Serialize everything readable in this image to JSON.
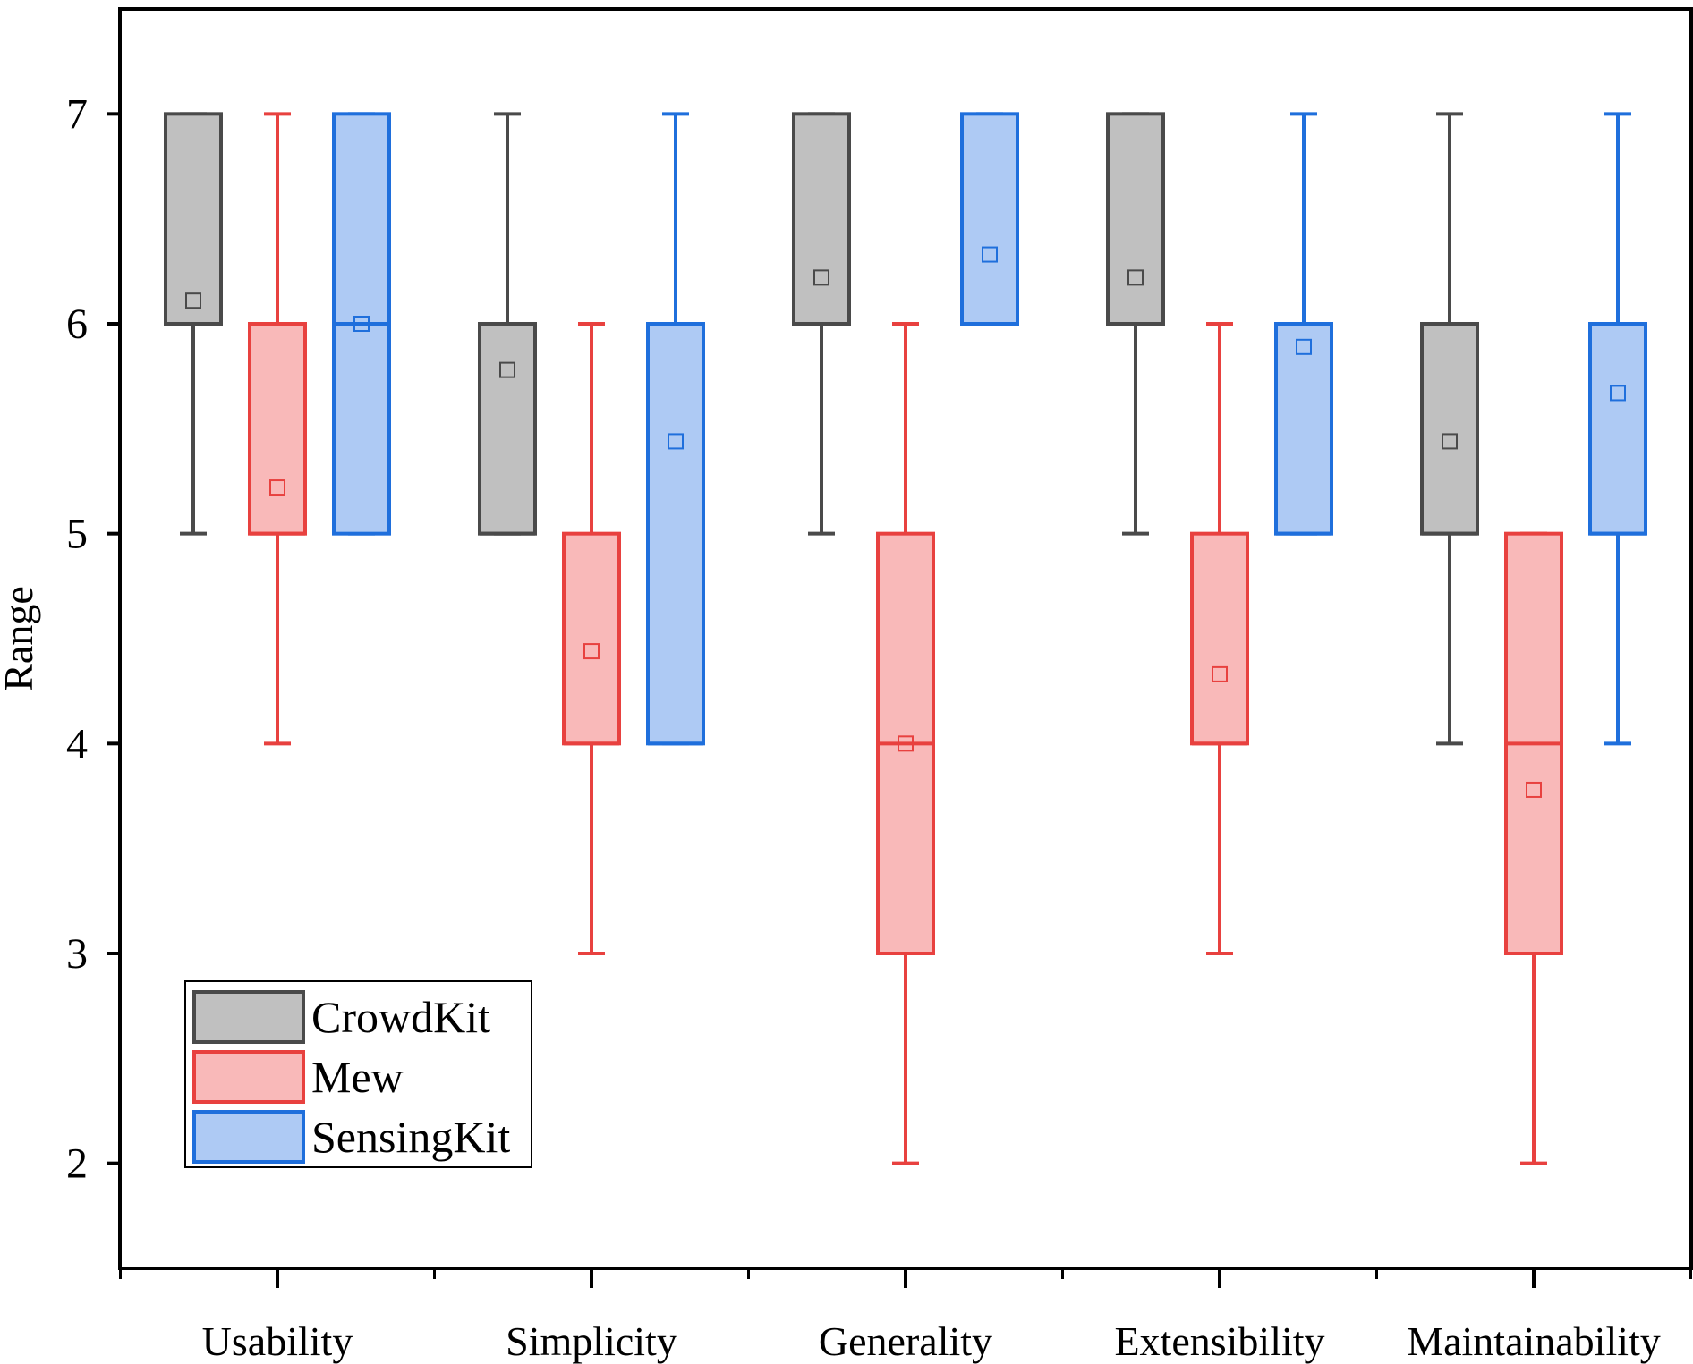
{
  "chart_data": {
    "type": "boxplot",
    "title": "",
    "xlabel": "",
    "ylabel": "Range",
    "ylim": [
      1.5,
      7.5
    ],
    "yticks": [
      2,
      3,
      4,
      5,
      6,
      7
    ],
    "ytick_labels": [
      "2",
      "3",
      "4",
      "5",
      "6",
      "7"
    ],
    "categories": [
      "Usability",
      "Simplicity",
      "Generality",
      "Extensibility",
      "Maintainability"
    ],
    "grid": false,
    "legend_position": "bottom-left",
    "series": [
      {
        "name": "CrowdKit",
        "stroke": "#4a4a4a",
        "fill": "#c0c0c0",
        "boxes": [
          {
            "whisker_low": 5,
            "q1": 6,
            "median": 6,
            "q3": 7,
            "whisker_high": 7,
            "mean": 6.11
          },
          {
            "whisker_low": 5,
            "q1": 5,
            "median": 5,
            "q3": 6,
            "whisker_high": 7,
            "mean": 5.78
          },
          {
            "whisker_low": 5,
            "q1": 6,
            "median": 6,
            "q3": 7,
            "whisker_high": 7,
            "mean": 6.22
          },
          {
            "whisker_low": 5,
            "q1": 6,
            "median": 6,
            "q3": 7,
            "whisker_high": 7,
            "mean": 6.22
          },
          {
            "whisker_low": 4,
            "q1": 5,
            "median": 5,
            "q3": 6,
            "whisker_high": 7,
            "mean": 5.44
          }
        ]
      },
      {
        "name": "Mew",
        "stroke": "#e8413f",
        "fill": "#f9b9b9",
        "boxes": [
          {
            "whisker_low": 4,
            "q1": 5,
            "median": 5,
            "q3": 6,
            "whisker_high": 7,
            "mean": 5.22
          },
          {
            "whisker_low": 3,
            "q1": 4,
            "median": 4,
            "q3": 5,
            "whisker_high": 6,
            "mean": 4.44
          },
          {
            "whisker_low": 2,
            "q1": 3,
            "median": 4,
            "q3": 5,
            "whisker_high": 6,
            "mean": 4.0
          },
          {
            "whisker_low": 3,
            "q1": 4,
            "median": 4,
            "q3": 5,
            "whisker_high": 6,
            "mean": 4.33
          },
          {
            "whisker_low": 2,
            "q1": 3,
            "median": 4,
            "q3": 5,
            "whisker_high": 5,
            "mean": 3.78
          }
        ]
      },
      {
        "name": "SensingKit",
        "stroke": "#1f6fdc",
        "fill": "#aecaf4",
        "boxes": [
          {
            "whisker_low": 5,
            "q1": 5,
            "median": 6,
            "q3": 7,
            "whisker_high": 7,
            "mean": 6.0
          },
          {
            "whisker_low": 4,
            "q1": 4,
            "median": 4,
            "q3": 6,
            "whisker_high": 7,
            "mean": 5.44
          },
          {
            "whisker_low": 6,
            "q1": 6,
            "median": 6,
            "q3": 7,
            "whisker_high": 7,
            "mean": 6.33
          },
          {
            "whisker_low": 5,
            "q1": 5,
            "median": 5,
            "q3": 6,
            "whisker_high": 7,
            "mean": 5.89
          },
          {
            "whisker_low": 4,
            "q1": 5,
            "median": 5,
            "q3": 6,
            "whisker_high": 7,
            "mean": 5.67
          }
        ]
      }
    ]
  }
}
